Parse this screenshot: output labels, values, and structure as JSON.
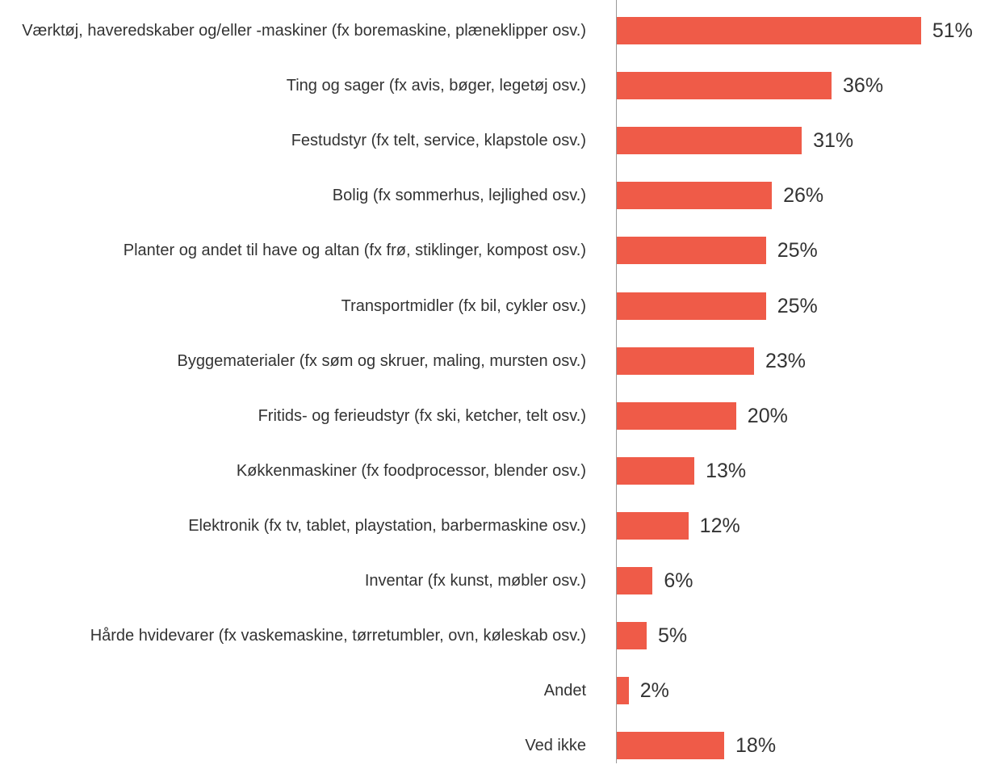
{
  "chart_data": {
    "type": "bar",
    "orientation": "horizontal",
    "color": "#ef5b48",
    "categories": [
      "Værktøj, haveredskaber og/eller -maskiner (fx boremaskine, plæneklipper osv.)",
      "Ting og sager (fx avis, bøger, legetøj osv.)",
      "Festudstyr (fx telt, service, klapstole osv.)",
      "Bolig (fx sommerhus, lejlighed osv.)",
      "Planter og andet til have og altan (fx frø, stiklinger, kompost osv.)",
      "Transportmidler (fx bil, cykler osv.)",
      "Byggematerialer (fx søm og skruer, maling, mursten osv.)",
      "Fritids- og ferieudstyr (fx ski, ketcher, telt osv.)",
      "Køkkenmaskiner (fx foodprocessor, blender osv.)",
      "Elektronik (fx tv, tablet, playstation, barbermaskine osv.)",
      "Inventar (fx kunst, møbler osv.)",
      "Hårde hvidevarer (fx vaskemaskine, tørretumbler, ovn, køleskab osv.)",
      "Andet",
      "Ved ikke"
    ],
    "values": [
      51,
      36,
      31,
      26,
      25,
      25,
      23,
      20,
      13,
      12,
      6,
      5,
      2,
      18
    ],
    "value_labels": [
      "51%",
      "36%",
      "31%",
      "26%",
      "25%",
      "25%",
      "23%",
      "20%",
      "13%",
      "12%",
      "6%",
      "5%",
      "2%",
      "18%"
    ]
  }
}
